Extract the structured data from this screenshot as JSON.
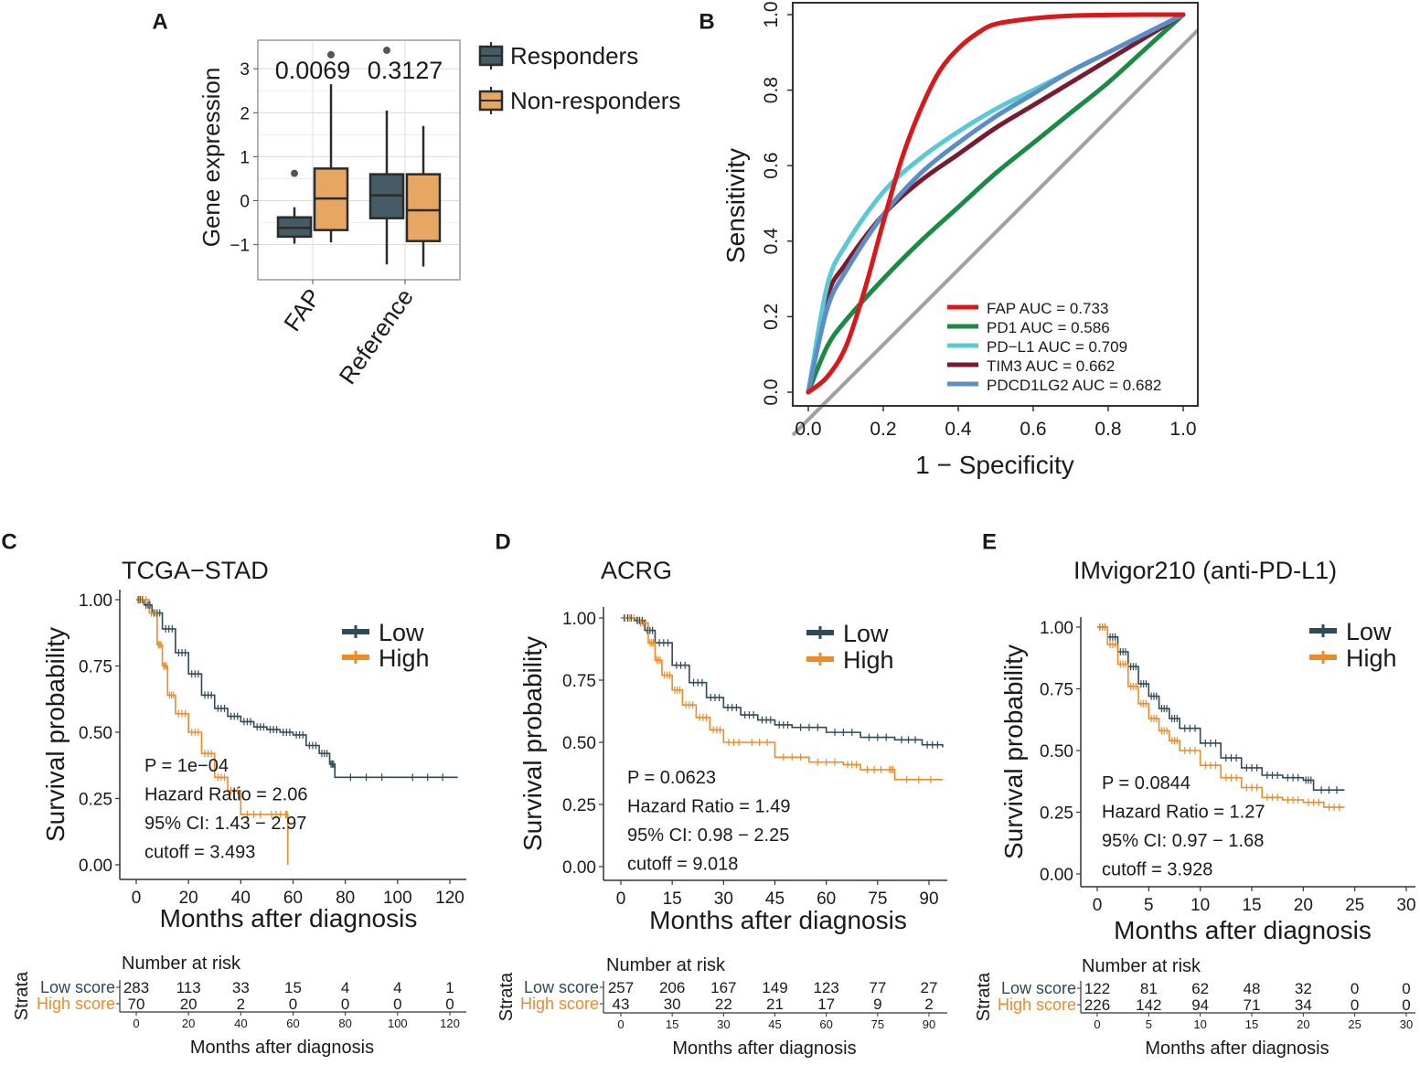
{
  "panel_labels": [
    "A",
    "B",
    "C",
    "D",
    "E"
  ],
  "chart_data": [
    {
      "id": "A",
      "type": "box",
      "ylabel": "Gene expression",
      "categories": [
        "FAP",
        "Reference"
      ],
      "yticks": [
        -1,
        0,
        1,
        2,
        3
      ],
      "ylim": [
        -1.8,
        3.65
      ],
      "legend": [
        {
          "name": "Responders",
          "color": "#455c66"
        },
        {
          "name": "Non-responders",
          "color": "#e8a663"
        }
      ],
      "pvalues": [
        "0.0069",
        "0.3127"
      ],
      "boxes": [
        {
          "category": "FAP",
          "group": "Responders",
          "min": -0.98,
          "q1": -0.82,
          "median": -0.62,
          "q3": -0.38,
          "max": -0.15,
          "outliers": [
            0.62
          ]
        },
        {
          "category": "FAP",
          "group": "Non-responders",
          "min": -0.95,
          "q1": -0.67,
          "median": 0.05,
          "q3": 0.73,
          "max": 2.65,
          "outliers": [
            3.32
          ]
        },
        {
          "category": "Reference",
          "group": "Responders",
          "min": -1.45,
          "q1": -0.4,
          "median": 0.12,
          "q3": 0.6,
          "max": 2.05,
          "outliers": [
            3.42
          ]
        },
        {
          "category": "Reference",
          "group": "Non-responders",
          "min": -1.5,
          "q1": -0.92,
          "median": -0.22,
          "q3": 0.6,
          "max": 1.7,
          "outliers": []
        }
      ]
    },
    {
      "id": "B",
      "type": "line",
      "xlabel": "1 − Specificity",
      "ylabel": "Sensitivity",
      "xticks": [
        "0.0",
        "0.2",
        "0.4",
        "0.6",
        "0.8",
        "1.0"
      ],
      "yticks": [
        "0.0",
        "0.2",
        "0.4",
        "0.6",
        "0.8",
        "1.0"
      ],
      "xlim": [
        0,
        1
      ],
      "ylim": [
        0,
        1
      ],
      "legend_position": "bottom-right",
      "series": [
        {
          "name": "FAP",
          "auc_text": "AUC =  0.733",
          "color": "#d7191c",
          "x": [
            0,
            0.05,
            0.1,
            0.15,
            0.2,
            0.25,
            0.3,
            0.35,
            0.4,
            0.45,
            0.5,
            0.6,
            0.7,
            0.8,
            0.9,
            1.0
          ],
          "y": [
            0,
            0.04,
            0.12,
            0.27,
            0.45,
            0.62,
            0.75,
            0.85,
            0.91,
            0.95,
            0.975,
            0.99,
            0.997,
            0.999,
            1.0,
            1.0
          ]
        },
        {
          "name": "PD1",
          "auc_text": "AUC =  0.586",
          "color": "#1a8a45",
          "x": [
            0,
            0.05,
            0.1,
            0.2,
            0.3,
            0.4,
            0.5,
            0.6,
            0.7,
            0.8,
            0.9,
            1.0
          ],
          "y": [
            0,
            0.12,
            0.19,
            0.3,
            0.4,
            0.49,
            0.58,
            0.66,
            0.74,
            0.82,
            0.91,
            1.0
          ]
        },
        {
          "name": "PD−L1",
          "auc_text": "AUC =  0.709",
          "color": "#5bc8d6",
          "x": [
            0,
            0.05,
            0.1,
            0.2,
            0.3,
            0.4,
            0.5,
            0.6,
            0.7,
            0.8,
            0.9,
            1.0
          ],
          "y": [
            0,
            0.28,
            0.39,
            0.53,
            0.62,
            0.69,
            0.75,
            0.8,
            0.85,
            0.9,
            0.95,
            1.0
          ]
        },
        {
          "name": "TIM3",
          "auc_text": "AUC =  0.662",
          "color": "#7b1a2e",
          "x": [
            0,
            0.05,
            0.1,
            0.2,
            0.3,
            0.4,
            0.5,
            0.6,
            0.7,
            0.8,
            0.9,
            1.0
          ],
          "y": [
            0,
            0.25,
            0.34,
            0.47,
            0.56,
            0.63,
            0.7,
            0.76,
            0.82,
            0.88,
            0.94,
            1.0
          ]
        },
        {
          "name": "PDCD1LG2",
          "auc_text": "AUC =  0.682",
          "color": "#5b8ec6",
          "x": [
            0,
            0.05,
            0.1,
            0.2,
            0.3,
            0.4,
            0.5,
            0.6,
            0.7,
            0.8,
            0.9,
            1.0
          ],
          "y": [
            0,
            0.22,
            0.32,
            0.47,
            0.58,
            0.66,
            0.73,
            0.79,
            0.85,
            0.9,
            0.95,
            1.0
          ]
        },
        {
          "name": "reference",
          "auc_text": "",
          "color": "#a0a0a0",
          "x": [
            0,
            1
          ],
          "y": [
            0,
            1
          ]
        }
      ]
    },
    {
      "id": "C",
      "type": "survival",
      "title": "TCGA−STAD",
      "xlabel": "Months after diagnosis",
      "ylabel": "Survival probability",
      "xmax": 125,
      "xticks": [
        0,
        20,
        40,
        60,
        80,
        100,
        120
      ],
      "yticks": [
        "0.00",
        "0.25",
        "0.50",
        "0.75",
        "1.00"
      ],
      "legend": [
        {
          "name": "Low",
          "color": "#2e4a56"
        },
        {
          "name": "High",
          "color": "#e88c2c"
        }
      ],
      "stats": [
        "P = 1e−04",
        "Hazard Ratio = 2.06",
        "95% CI: 1.43 − 2.97",
        "cutoff = 3.493"
      ],
      "low_curve": [
        [
          0,
          1.0
        ],
        [
          3,
          0.98
        ],
        [
          6,
          0.95
        ],
        [
          10,
          0.89
        ],
        [
          15,
          0.8
        ],
        [
          20,
          0.72
        ],
        [
          25,
          0.64
        ],
        [
          30,
          0.59
        ],
        [
          35,
          0.56
        ],
        [
          40,
          0.54
        ],
        [
          45,
          0.52
        ],
        [
          50,
          0.51
        ],
        [
          55,
          0.5
        ],
        [
          60,
          0.49
        ],
        [
          65,
          0.45
        ],
        [
          70,
          0.42
        ],
        [
          74,
          0.38
        ],
        [
          76,
          0.33
        ],
        [
          100,
          0.33
        ],
        [
          123,
          0.33
        ]
      ],
      "high_curve": [
        [
          0,
          1.0
        ],
        [
          5,
          0.95
        ],
        [
          8,
          0.83
        ],
        [
          10,
          0.75
        ],
        [
          12,
          0.64
        ],
        [
          15,
          0.57
        ],
        [
          20,
          0.5
        ],
        [
          25,
          0.42
        ],
        [
          30,
          0.33
        ],
        [
          35,
          0.28
        ],
        [
          40,
          0.19
        ],
        [
          50,
          0.19
        ],
        [
          57,
          0.19
        ],
        [
          58,
          0.0
        ]
      ],
      "risk_table": {
        "title": "Number at risk",
        "strata_label": "Strata",
        "rows": [
          {
            "name": "Low score",
            "color": "#2e4a56",
            "values": [
              "283",
              "113",
              "33",
              "15",
              "4",
              "4",
              "1"
            ]
          },
          {
            "name": "High score",
            "color": "#e88c2c",
            "values": [
              "70",
              "20",
              "2",
              "0",
              "0",
              "0",
              "0"
            ]
          }
        ],
        "xticks": [
          "0",
          "20",
          "40",
          "60",
          "80",
          "100",
          "120"
        ],
        "xlabel": "Months after diagnosis"
      }
    },
    {
      "id": "D",
      "type": "survival",
      "title": "ACRG",
      "xlabel": "Months after diagnosis",
      "ylabel": "Survival probability",
      "xmax": 95,
      "xticks": [
        0,
        15,
        30,
        45,
        60,
        75,
        90
      ],
      "yticks": [
        "0.00",
        "0.25",
        "0.50",
        "0.75",
        "1.00"
      ],
      "legend": [
        {
          "name": "Low",
          "color": "#2e4a56"
        },
        {
          "name": "High",
          "color": "#e88c2c"
        }
      ],
      "stats": [
        "P = 0.0623",
        "Hazard Ratio = 1.49",
        "95% CI: 0.98 − 2.25",
        "cutoff = 9.018"
      ],
      "low_curve": [
        [
          0,
          1.0
        ],
        [
          4,
          0.99
        ],
        [
          7,
          0.95
        ],
        [
          10,
          0.9
        ],
        [
          15,
          0.81
        ],
        [
          20,
          0.74
        ],
        [
          25,
          0.68
        ],
        [
          30,
          0.64
        ],
        [
          35,
          0.61
        ],
        [
          40,
          0.59
        ],
        [
          45,
          0.57
        ],
        [
          50,
          0.56
        ],
        [
          60,
          0.54
        ],
        [
          70,
          0.52
        ],
        [
          80,
          0.51
        ],
        [
          88,
          0.49
        ],
        [
          94,
          0.48
        ]
      ],
      "high_curve": [
        [
          0,
          1.0
        ],
        [
          5,
          0.98
        ],
        [
          8,
          0.9
        ],
        [
          10,
          0.83
        ],
        [
          12,
          0.77
        ],
        [
          15,
          0.71
        ],
        [
          18,
          0.65
        ],
        [
          22,
          0.6
        ],
        [
          26,
          0.55
        ],
        [
          30,
          0.5
        ],
        [
          36,
          0.5
        ],
        [
          45,
          0.44
        ],
        [
          55,
          0.42
        ],
        [
          65,
          0.41
        ],
        [
          70,
          0.39
        ],
        [
          78,
          0.39
        ],
        [
          80,
          0.35
        ],
        [
          94,
          0.35
        ]
      ],
      "risk_table": {
        "title": "Number at risk",
        "strata_label": "Strata",
        "rows": [
          {
            "name": "Low score",
            "color": "#2e4a56",
            "values": [
              "257",
              "206",
              "167",
              "149",
              "123",
              "77",
              "27"
            ]
          },
          {
            "name": "High score",
            "color": "#e88c2c",
            "values": [
              "43",
              "30",
              "22",
              "21",
              "17",
              "9",
              "2"
            ]
          }
        ],
        "xticks": [
          "0",
          "15",
          "30",
          "45",
          "60",
          "75",
          "90"
        ],
        "xlabel": "Months after diagnosis"
      }
    },
    {
      "id": "E",
      "type": "survival",
      "title": "IMvigor210  (anti-PD-L1)",
      "xlabel": "Months after diagnosis",
      "ylabel": "Survival probability",
      "xmax": 31,
      "xticks": [
        0,
        5,
        10,
        15,
        20,
        25,
        30
      ],
      "yticks": [
        "0.00",
        "0.25",
        "0.50",
        "0.75",
        "1.00"
      ],
      "legend": [
        {
          "name": "Low",
          "color": "#2e4a56"
        },
        {
          "name": "High",
          "color": "#e88c2c"
        }
      ],
      "stats": [
        "P = 0.0844",
        "Hazard Ratio = 1.27",
        "95% CI: 0.97 − 1.68",
        "cutoff = 3.928"
      ],
      "low_curve": [
        [
          0,
          1.0
        ],
        [
          1,
          0.96
        ],
        [
          2,
          0.9
        ],
        [
          3,
          0.84
        ],
        [
          4,
          0.77
        ],
        [
          5,
          0.72
        ],
        [
          6,
          0.67
        ],
        [
          7,
          0.63
        ],
        [
          8,
          0.59
        ],
        [
          10,
          0.53
        ],
        [
          12,
          0.47
        ],
        [
          14,
          0.43
        ],
        [
          16,
          0.4
        ],
        [
          18,
          0.39
        ],
        [
          20,
          0.38
        ],
        [
          21,
          0.34
        ],
        [
          24,
          0.34
        ]
      ],
      "high_curve": [
        [
          0,
          1.0
        ],
        [
          1,
          0.93
        ],
        [
          2,
          0.85
        ],
        [
          3,
          0.76
        ],
        [
          4,
          0.69
        ],
        [
          5,
          0.63
        ],
        [
          6,
          0.58
        ],
        [
          7,
          0.54
        ],
        [
          8,
          0.5
        ],
        [
          10,
          0.44
        ],
        [
          12,
          0.39
        ],
        [
          14,
          0.35
        ],
        [
          16,
          0.31
        ],
        [
          18,
          0.3
        ],
        [
          20,
          0.29
        ],
        [
          22,
          0.27
        ],
        [
          24,
          0.27
        ]
      ],
      "risk_table": {
        "title": "Number at risk",
        "strata_label": "Strata",
        "rows": [
          {
            "name": "Low score",
            "color": "#2e4a56",
            "values": [
              "122",
              "81",
              "62",
              "48",
              "32",
              "0",
              "0"
            ]
          },
          {
            "name": "High score",
            "color": "#e88c2c",
            "values": [
              "226",
              "142",
              "94",
              "71",
              "34",
              "0",
              "0"
            ]
          }
        ],
        "xticks": [
          "0",
          "5",
          "10",
          "15",
          "20",
          "25",
          "30"
        ],
        "xlabel": "Months after diagnosis"
      }
    }
  ]
}
